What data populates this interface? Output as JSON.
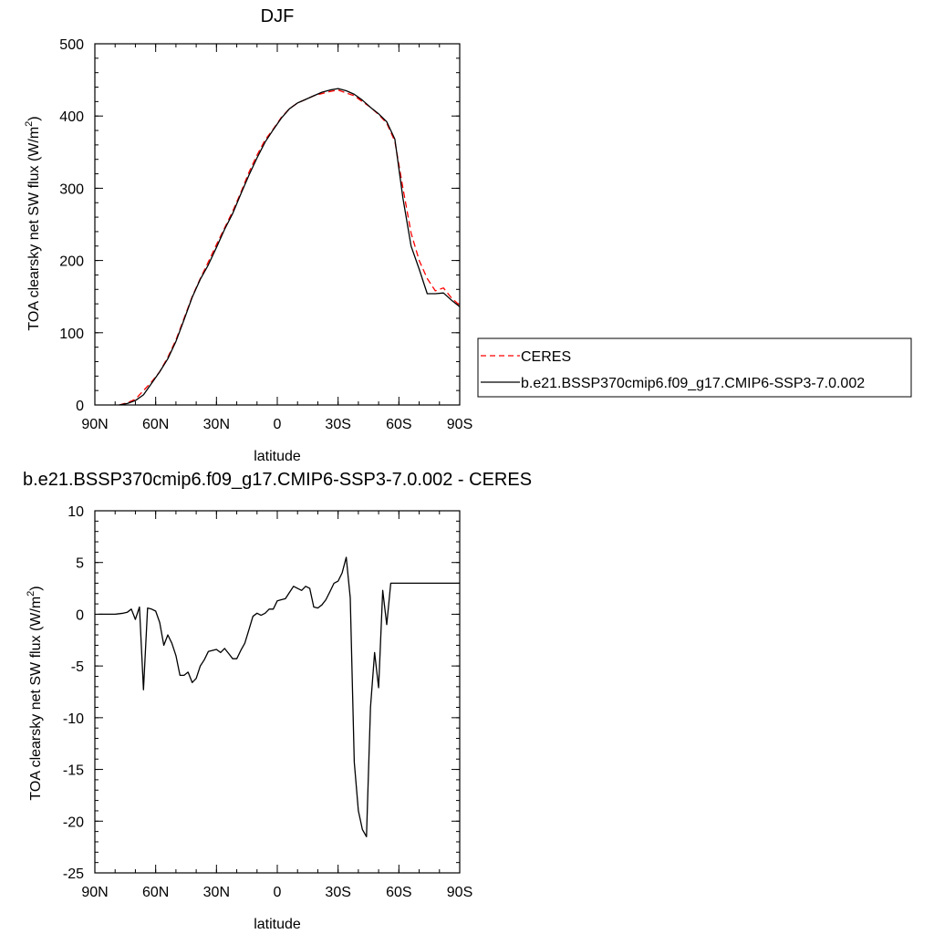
{
  "chart_data": [
    {
      "type": "line",
      "title": "DJF",
      "xlabel": "latitude",
      "ylabel_prefix": "TOA clearsky net SW flux (W/m",
      "ylabel_sup": "2",
      "ylabel_suffix": ")",
      "xlim": [
        -90,
        90
      ],
      "ylim": [
        0,
        500
      ],
      "x_ticks": [
        {
          "value": -90,
          "label": "90N"
        },
        {
          "value": -60,
          "label": "60N"
        },
        {
          "value": -30,
          "label": "30N"
        },
        {
          "value": 0,
          "label": "0"
        },
        {
          "value": 30,
          "label": "30S"
        },
        {
          "value": 60,
          "label": "60S"
        },
        {
          "value": 90,
          "label": "90S"
        }
      ],
      "y_ticks": [
        {
          "value": 0,
          "label": "0"
        },
        {
          "value": 100,
          "label": "100"
        },
        {
          "value": 200,
          "label": "200"
        },
        {
          "value": 300,
          "label": "300"
        },
        {
          "value": 400,
          "label": "400"
        },
        {
          "value": 500,
          "label": "500"
        }
      ],
      "legend": {
        "position": "right",
        "entries": [
          "CERES",
          "b.e21.BSSP370cmip6.f09_g17.CMIP6-SSP3-7.0.002"
        ]
      },
      "series": [
        {
          "name": "CERES",
          "color": "#ff0000",
          "style": "dashed",
          "x": [
            -78,
            -74,
            -70,
            -66,
            -62,
            -58,
            -54,
            -50,
            -46,
            -42,
            -38,
            -34,
            -30,
            -26,
            -22,
            -18,
            -14,
            -10,
            -6,
            -2,
            2,
            6,
            10,
            14,
            18,
            22,
            26,
            30,
            34,
            38,
            42,
            46,
            50,
            54,
            58,
            62,
            66,
            70,
            74,
            78,
            82,
            86,
            90
          ],
          "y": [
            0,
            3,
            8,
            20,
            32,
            46,
            66,
            90,
            120,
            150,
            175,
            198,
            222,
            245,
            268,
            294,
            322,
            346,
            367,
            382,
            398,
            410,
            418,
            423,
            428,
            431,
            434,
            436,
            432,
            428,
            420,
            412,
            402,
            390,
            365,
            300,
            238,
            200,
            175,
            158,
            162,
            148,
            138
          ]
        },
        {
          "name": "b.e21.BSSP370cmip6.f09_g17.CMIP6-SSP3-7.0.002",
          "color": "#000000",
          "style": "solid",
          "x": [
            -78,
            -74,
            -70,
            -66,
            -62,
            -58,
            -54,
            -50,
            -46,
            -42,
            -38,
            -34,
            -30,
            -26,
            -22,
            -18,
            -14,
            -10,
            -6,
            -2,
            2,
            6,
            10,
            14,
            18,
            22,
            26,
            30,
            34,
            38,
            42,
            46,
            50,
            54,
            58,
            62,
            66,
            70,
            74,
            78,
            82,
            86,
            90
          ],
          "y": [
            0,
            2,
            6,
            14,
            30,
            46,
            64,
            88,
            118,
            149,
            174,
            194,
            218,
            243,
            265,
            292,
            318,
            342,
            364,
            381,
            397,
            410,
            418,
            423,
            428,
            433,
            436,
            438,
            435,
            430,
            422,
            412,
            403,
            392,
            368,
            286,
            220,
            188,
            154,
            154,
            155,
            145,
            136
          ]
        }
      ]
    },
    {
      "type": "line",
      "title": "b.e21.BSSP370cmip6.f09_g17.CMIP6-SSP3-7.0.002 - CERES",
      "xlabel": "latitude",
      "ylabel_prefix": "TOA clearsky net SW flux (W/m",
      "ylabel_sup": "2",
      "ylabel_suffix": ")",
      "xlim": [
        -90,
        90
      ],
      "ylim": [
        -25,
        10
      ],
      "x_ticks": [
        {
          "value": -90,
          "label": "90N"
        },
        {
          "value": -60,
          "label": "60N"
        },
        {
          "value": -30,
          "label": "30N"
        },
        {
          "value": 0,
          "label": "0"
        },
        {
          "value": 30,
          "label": "30S"
        },
        {
          "value": 60,
          "label": "60S"
        },
        {
          "value": 90,
          "label": "90S"
        }
      ],
      "y_ticks": [
        {
          "value": -25,
          "label": "-25"
        },
        {
          "value": -20,
          "label": "-20"
        },
        {
          "value": -15,
          "label": "-15"
        },
        {
          "value": -10,
          "label": "-10"
        },
        {
          "value": -5,
          "label": "-5"
        },
        {
          "value": 0,
          "label": "0"
        },
        {
          "value": 5,
          "label": "5"
        },
        {
          "value": 10,
          "label": "10"
        }
      ],
      "series": [
        {
          "color": "#000000",
          "style": "solid",
          "x": [
            -88,
            -80,
            -76,
            -74,
            -72,
            -70,
            -68,
            -66,
            -64,
            -62,
            -60,
            -58,
            -56,
            -54,
            -52,
            -50,
            -48,
            -46,
            -44,
            -42,
            -40,
            -38,
            -36,
            -34,
            -32,
            -30,
            -28,
            -26,
            -24,
            -22,
            -20,
            -18,
            -16,
            -14,
            -12,
            -10,
            -8,
            -6,
            -4,
            -2,
            0,
            2,
            4,
            6,
            8,
            10,
            12,
            14,
            16,
            18,
            20,
            22,
            24,
            26,
            28,
            30,
            32,
            34,
            36,
            38,
            40,
            42,
            44,
            46,
            48,
            50,
            52,
            54,
            56,
            58,
            60,
            62,
            64,
            66,
            68,
            70,
            72,
            74,
            76,
            78,
            80,
            82,
            84,
            86,
            88,
            90
          ],
          "y": [
            0,
            0,
            0.1,
            0.2,
            0.5,
            -0.5,
            0.7,
            -7.3,
            0.6,
            0.5,
            0.3,
            -0.8,
            -3.0,
            -2.0,
            -2.8,
            -4.0,
            -5.9,
            -5.9,
            -5.6,
            -6.6,
            -6.2,
            -5.0,
            -4.4,
            -3.6,
            -3.5,
            -3.4,
            -3.7,
            -3.3,
            -3.8,
            -4.3,
            -4.3,
            -3.5,
            -2.8,
            -1.5,
            -0.2,
            0.1,
            -0.1,
            0.1,
            0.5,
            0.5,
            1.3,
            1.4,
            1.5,
            2.1,
            2.7,
            2.5,
            2.3,
            2.7,
            2.5,
            0.7,
            0.6,
            0.9,
            1.4,
            2.2,
            3.0,
            3.2,
            4.0,
            5.5,
            1.6,
            -14.3,
            -19.0,
            -20.8,
            -21.5,
            -9.0,
            -3.7,
            -7.1,
            2.3,
            -1.0,
            3.0,
            3.0,
            3.0,
            3.0,
            3.0,
            3.0,
            3.0,
            3.0,
            3.0,
            3.0,
            3.0,
            3.0,
            3.0,
            3.0,
            3.0,
            3.0,
            3.0,
            3.0
          ]
        }
      ]
    }
  ]
}
